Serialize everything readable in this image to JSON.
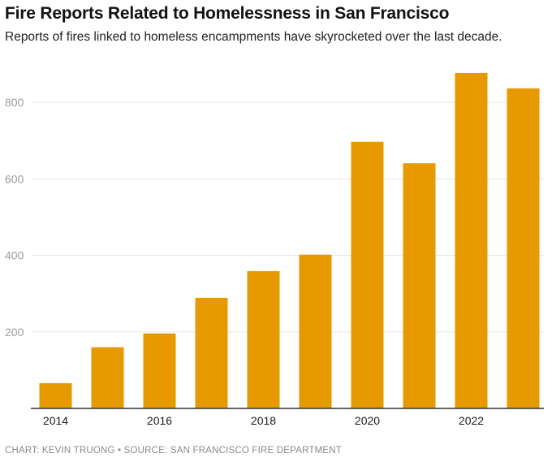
{
  "chart_data": {
    "type": "bar",
    "title": "Fire Reports Related to Homelessness in San Francisco",
    "subtitle": "Reports of fires linked to homeless encampments have skyrocketed over the last decade.",
    "categories": [
      "2014",
      "2015",
      "2016",
      "2017",
      "2018",
      "2019",
      "2020",
      "2021",
      "2022",
      "2023"
    ],
    "values": [
      66,
      160,
      196,
      289,
      359,
      402,
      697,
      641,
      877,
      837
    ],
    "x_tick_labels": [
      "2014",
      "2016",
      "2018",
      "2020",
      "2022"
    ],
    "y_ticks": [
      200,
      400,
      600,
      800
    ],
    "ylim": [
      0,
      900
    ],
    "xlabel": "",
    "ylabel": "",
    "grid": true,
    "bar_color": "#E69A00",
    "gridline_color": "#e6e6e6",
    "axis_color": "#333333"
  },
  "footer": {
    "credit": "CHART: KEVIN TRUONG • SOURCE: SAN FRANCISCO FIRE DEPARTMENT"
  }
}
